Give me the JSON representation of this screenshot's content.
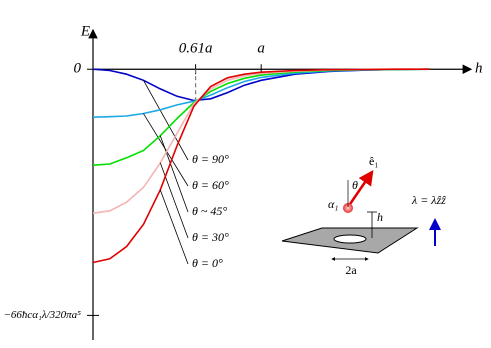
{
  "chart_data": {
    "type": "line",
    "x_label": "h",
    "y_label": "E",
    "x": [
      0,
      0.1,
      0.2,
      0.3,
      0.4,
      0.5,
      0.6,
      0.7,
      0.8,
      0.9,
      1.0,
      1.2,
      1.4,
      1.6,
      1.8,
      2.0
    ],
    "series": [
      {
        "name": "θ = 90°",
        "color": "#0000c8",
        "values": [
          0,
          -0.005,
          -0.02,
          -0.045,
          -0.08,
          -0.11,
          -0.127,
          -0.12,
          -0.095,
          -0.065,
          -0.045,
          -0.02,
          -0.009,
          -0.004,
          -0.001,
          0
        ]
      },
      {
        "name": "θ = 60°",
        "color": "#1ea8e6",
        "values": [
          -0.195,
          -0.193,
          -0.19,
          -0.18,
          -0.165,
          -0.145,
          -0.13,
          -0.105,
          -0.075,
          -0.05,
          -0.033,
          -0.016,
          -0.007,
          -0.003,
          -0.001,
          0
        ]
      },
      {
        "name": "θ ~ 45°",
        "color": "#00e000",
        "values": [
          -0.39,
          -0.385,
          -0.36,
          -0.33,
          -0.27,
          -0.2,
          -0.135,
          -0.09,
          -0.058,
          -0.037,
          -0.024,
          -0.011,
          -0.005,
          -0.002,
          -0.001,
          0
        ]
      },
      {
        "name": "θ = 30°",
        "color": "#f4b4b4",
        "values": [
          -0.585,
          -0.575,
          -0.54,
          -0.48,
          -0.38,
          -0.26,
          -0.14,
          -0.08,
          -0.045,
          -0.027,
          -0.017,
          -0.008,
          -0.003,
          -0.001,
          0,
          0
        ]
      },
      {
        "name": "θ = 0°",
        "color": "#e00000",
        "values": [
          -0.785,
          -0.77,
          -0.72,
          -0.63,
          -0.49,
          -0.31,
          -0.15,
          -0.07,
          -0.035,
          -0.02,
          -0.012,
          -0.005,
          -0.002,
          -0.001,
          0,
          0
        ]
      }
    ],
    "xlim": [
      0,
      2.2
    ],
    "ylim": [
      -1.1,
      0.2
    ],
    "xticks": [
      {
        "value": 0.61,
        "label": "0.61a"
      },
      {
        "value": 1,
        "label": "a"
      }
    ],
    "yticks": [
      0,
      {
        "value": -1,
        "label": "−66ħcα₁λ/320πa⁵"
      }
    ],
    "inset": {
      "unit_vector": "ê₁",
      "angle": "θ",
      "dipole": "α₁",
      "height": "h",
      "hole": "2a",
      "field": "λ = λẑẑ"
    }
  }
}
